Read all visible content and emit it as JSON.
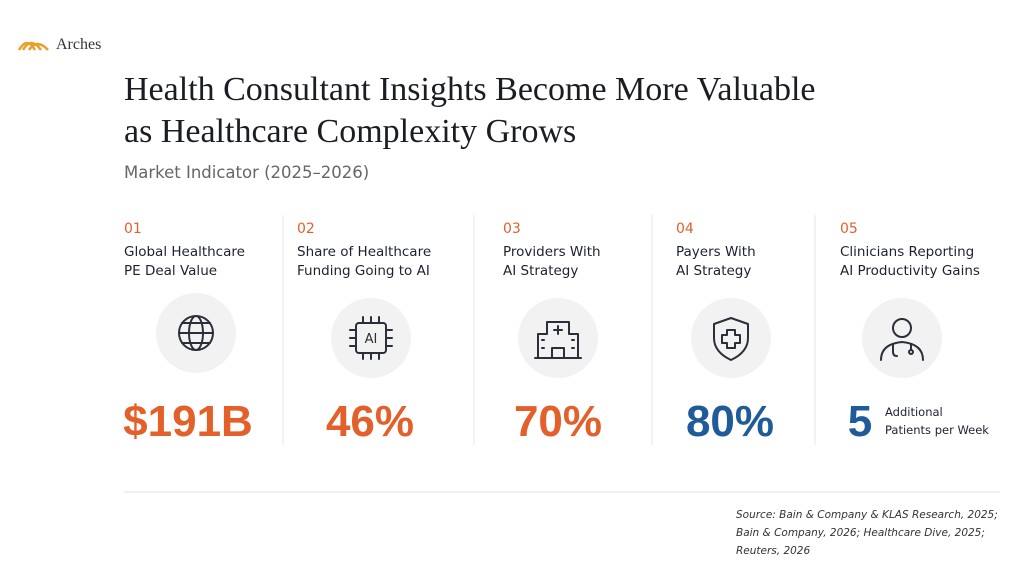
{
  "brand": "Arches",
  "title": [
    "Health Consultant Insights Become More Valuable",
    "as Healthcare Complexity Grows"
  ],
  "subtitle": "Market Indicator (2025–2026)",
  "items": [
    {
      "number": "01",
      "label": [
        "Global Healthcare",
        "PE Deal Value"
      ],
      "value": "$191B",
      "color": "#e4602a"
    },
    {
      "number": "02",
      "label": [
        "Share of Healthcare",
        "Funding Going to AI"
      ],
      "value": "46%",
      "color": "#e4602a",
      "icon_text": "AI"
    },
    {
      "number": "03",
      "label": [
        "Providers With",
        "AI Strategy"
      ],
      "value": "70%",
      "color": "#e4602a"
    },
    {
      "number": "04",
      "label": [
        "Payers With",
        "AI Strategy"
      ],
      "value": "80%",
      "color": "#1f5b99"
    },
    {
      "number": "05",
      "label": [
        "Clinicians Reporting",
        "AI Productivity Gains"
      ],
      "value": "5",
      "color": "#1f5b99",
      "note": [
        "Additional",
        "Patients per Week"
      ]
    }
  ],
  "source": [
    "Source: Bain & Company & KLAS Research, 2025;",
    "Bain & Company, 2026; Healthcare Dive, 2025;",
    "Reuters, 2026"
  ]
}
